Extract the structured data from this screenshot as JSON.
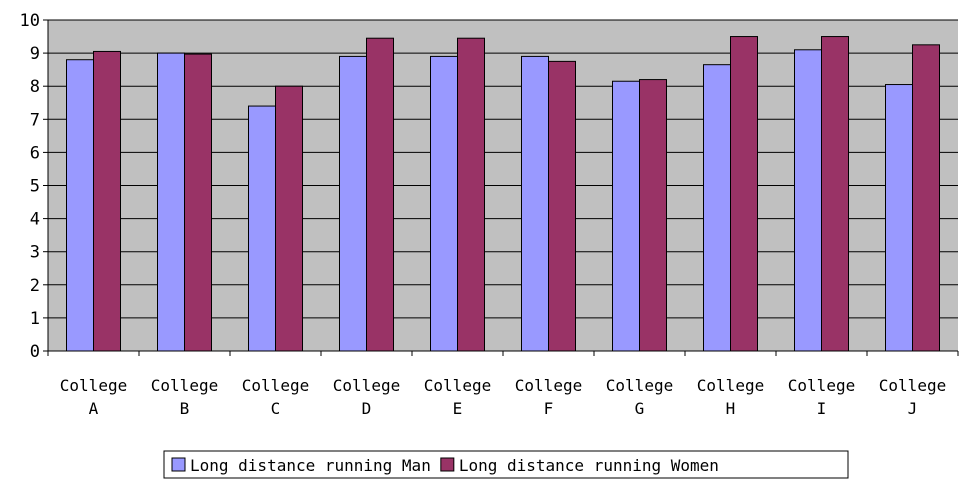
{
  "chart_data": {
    "type": "bar",
    "title": "",
    "xlabel": "",
    "ylabel": "",
    "ylim": [
      0,
      10
    ],
    "yticks": [
      "0",
      "1",
      "2",
      "3",
      "4",
      "5",
      "6",
      "7",
      "8",
      "9",
      "10"
    ],
    "grid": true,
    "legend_position": "bottom",
    "categories": [
      [
        "College",
        "A"
      ],
      [
        "College",
        "B"
      ],
      [
        "College",
        "C"
      ],
      [
        "College",
        "D"
      ],
      [
        "College",
        "E"
      ],
      [
        "College",
        "F"
      ],
      [
        "College",
        "G"
      ],
      [
        "College",
        "H"
      ],
      [
        "College",
        "I"
      ],
      [
        "College",
        "J"
      ]
    ],
    "series": [
      {
        "name": "Long distance running Man",
        "color": "#9999ff",
        "values": [
          8.8,
          9.0,
          7.4,
          8.9,
          8.9,
          8.9,
          8.15,
          8.65,
          9.1,
          8.05
        ]
      },
      {
        "name": "Long distance running Women",
        "color": "#993366",
        "values": [
          9.05,
          8.97,
          8.0,
          9.45,
          9.45,
          8.75,
          8.2,
          9.5,
          9.5,
          9.25
        ]
      }
    ],
    "colors": {
      "plot_background": "#c0c0c0",
      "gridline": "#000000",
      "axis": "#000000"
    }
  }
}
